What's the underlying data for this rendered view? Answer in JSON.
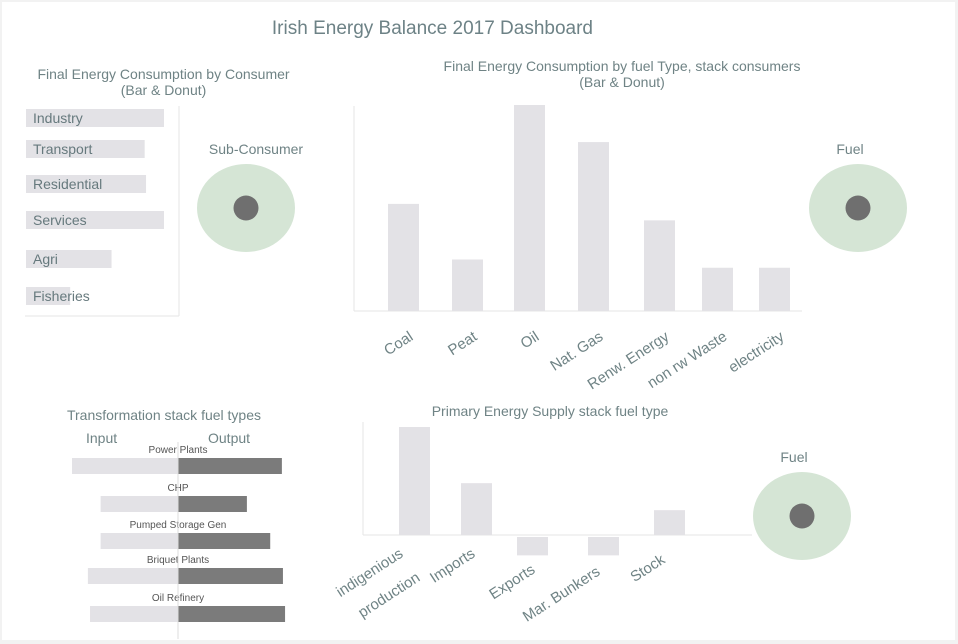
{
  "title": "Irish Energy Balance 2017 Dashboard",
  "colors": {
    "bar": "#e3e2e6",
    "bar_dark": "#7b7b7b",
    "donut": "#d5e5d5",
    "donut_hole": "#6f6f6f",
    "text": "#6f8385",
    "small_text": "#555555"
  },
  "consumer_panel": {
    "title_line1": "Final Energy Consumption by Consumer",
    "title_line2": "(Bar & Donut)",
    "donut_label": "Sub-Consumer"
  },
  "fuel_panel": {
    "title_line1": "Final Energy Consumption by fuel Type, stack consumers",
    "title_line2": "(Bar & Donut)",
    "donut_label": "Fuel"
  },
  "transform_panel": {
    "title": "Transformation stack fuel types",
    "input_label": "Input",
    "output_label": "Output"
  },
  "supply_panel": {
    "title": "Primary Energy Supply stack fuel type",
    "donut_label": "Fuel"
  },
  "chart_data": [
    {
      "id": "consumer",
      "type": "bar",
      "orientation": "horizontal",
      "categories": [
        "Industry",
        "Transport",
        "Residential",
        "Services",
        "Agri",
        "Fisheries"
      ],
      "values": [
        100,
        86,
        87,
        100,
        62,
        32
      ]
    },
    {
      "id": "sub_consumer_donut",
      "type": "pie",
      "title": "Sub-Consumer"
    },
    {
      "id": "fuel_type",
      "type": "bar",
      "categories": [
        "Coal",
        "Peat",
        "Oil",
        "Nat. Gas",
        "Renw. Energy",
        "non rw Waste",
        "electricity"
      ],
      "values": [
        52,
        25,
        100,
        82,
        44,
        21,
        21
      ]
    },
    {
      "id": "fuel_donut",
      "type": "pie",
      "title": "Fuel"
    },
    {
      "id": "transformation",
      "type": "bar",
      "orientation": "horizontal",
      "categories": [
        "Power Plants",
        "CHP",
        "Pumped Storage Gen",
        "Briquet Plants",
        "Oil Refinery"
      ],
      "series": [
        {
          "name": "Input",
          "values": [
            -100,
            -73,
            -73,
            -85,
            -83
          ]
        },
        {
          "name": "Output",
          "values": [
            98,
            65,
            87,
            99,
            101
          ]
        }
      ]
    },
    {
      "id": "primary_supply",
      "type": "bar",
      "categories": [
        "indigenious production",
        "Imports",
        "Exports",
        "Mar. Bunkers",
        "Stock"
      ],
      "values": [
        100,
        48,
        -17,
        -17,
        23
      ]
    },
    {
      "id": "supply_donut",
      "type": "pie",
      "title": "Fuel"
    }
  ]
}
